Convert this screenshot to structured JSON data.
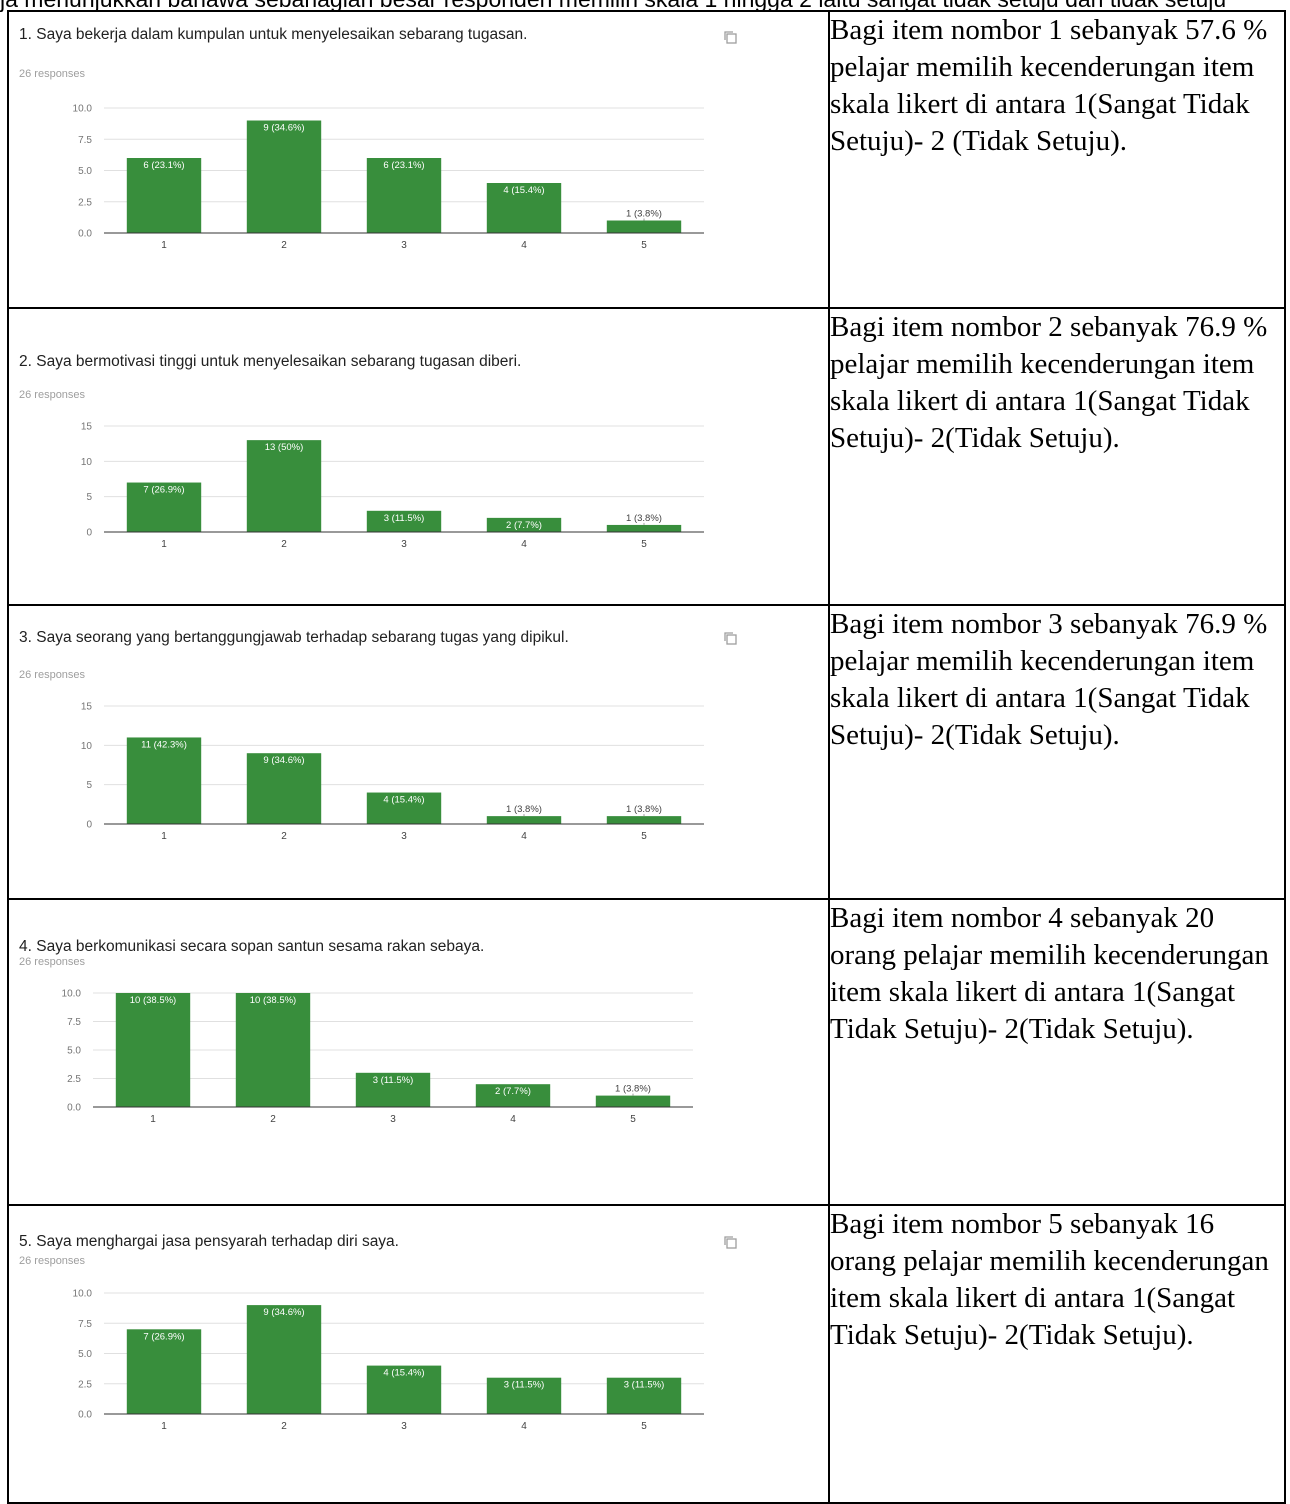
{
  "top_fragment": "ja menunjukkan bahawa sebahagian besar responden memilih skala 1 hingga 2 iaitu sangat tidak setuju dan tidak setuju",
  "colors": {
    "bar": "#388e3c",
    "grid": "#e0e0e0",
    "axis": "#333333",
    "tick": "#757575"
  },
  "items": [
    {
      "question": "1. Saya bekerja dalam kumpulan untuk menyelesaikan sebarang tugasan.",
      "responses": "26 responses",
      "has_copy_icon": true,
      "description": "Bagi item nombor 1 sebanyak 57.6 % pelajar memilih kecenderungan item skala likert di antara 1(Sangat Tidak Setuju)- 2 (Tidak Setuju).",
      "chart_data": {
        "type": "bar",
        "categories": [
          "1",
          "2",
          "3",
          "4",
          "5"
        ],
        "values": [
          6,
          9,
          6,
          4,
          1
        ],
        "data_labels": [
          "6 (23.1%)",
          "9 (34.6%)",
          "6 (23.1%)",
          "4 (15.4%)",
          "1 (3.8%)"
        ],
        "yticks": [
          "0.0",
          "2.5",
          "5.0",
          "7.5",
          "10.0"
        ],
        "ylim": [
          0,
          10
        ],
        "grid": true
      }
    },
    {
      "question": "2. Saya bermotivasi tinggi untuk menyelesaikan sebarang tugasan diberi.",
      "responses": "26 responses",
      "has_copy_icon": false,
      "description": "Bagi item nombor  2 sebanyak 76.9 % pelajar memilih kecenderungan item skala likert di antara 1(Sangat Tidak Setuju)- 2(Tidak Setuju).",
      "chart_data": {
        "type": "bar",
        "categories": [
          "1",
          "2",
          "3",
          "4",
          "5"
        ],
        "values": [
          7,
          13,
          3,
          2,
          1
        ],
        "data_labels": [
          "7 (26.9%)",
          "13 (50%)",
          "3 (11.5%)",
          "2 (7.7%)",
          "1 (3.8%)"
        ],
        "yticks": [
          "0",
          "5",
          "10",
          "15"
        ],
        "ylim": [
          0,
          15
        ],
        "grid": true
      }
    },
    {
      "question": "3. Saya seorang yang bertanggungjawab terhadap sebarang tugas yang dipikul.",
      "responses": "26 responses",
      "has_copy_icon": true,
      "description": "Bagi item nombor 3 sebanyak 76.9 % pelajar memilih kecenderungan item skala likert di antara 1(Sangat Tidak Setuju)- 2(Tidak Setuju).",
      "chart_data": {
        "type": "bar",
        "categories": [
          "1",
          "2",
          "3",
          "4",
          "5"
        ],
        "values": [
          11,
          9,
          4,
          1,
          1
        ],
        "data_labels": [
          "11 (42.3%)",
          "9 (34.6%)",
          "4 (15.4%)",
          "1 (3.8%)",
          "1 (3.8%)"
        ],
        "yticks": [
          "0",
          "5",
          "10",
          "15"
        ],
        "ylim": [
          0,
          15
        ],
        "grid": true
      }
    },
    {
      "question": "4. Saya berkomunikasi secara sopan santun sesama rakan sebaya.",
      "responses": "26 responses",
      "has_copy_icon": false,
      "description": "Bagi item nombor 4 sebanyak 20 orang pelajar memilih kecenderungan item skala likert di antara 1(Sangat Tidak Setuju)- 2(Tidak Setuju).",
      "chart_data": {
        "type": "bar",
        "categories": [
          "1",
          "2",
          "3",
          "4",
          "5"
        ],
        "values": [
          10,
          10,
          3,
          2,
          1
        ],
        "data_labels": [
          "10 (38.5%)",
          "10 (38.5%)",
          "3 (11.5%)",
          "2 (7.7%)",
          "1 (3.8%)"
        ],
        "yticks": [
          "0.0",
          "2.5",
          "5.0",
          "7.5",
          "10.0"
        ],
        "ylim": [
          0,
          10
        ],
        "grid": true
      }
    },
    {
      "question": "5. Saya menghargai jasa pensyarah terhadap diri saya.",
      "responses": "26 responses",
      "has_copy_icon": true,
      "description": "Bagi item nombor 5 sebanyak 16 orang pelajar memilih kecenderungan item skala likert di antara 1(Sangat Tidak Setuju)- 2(Tidak Setuju).",
      "chart_data": {
        "type": "bar",
        "categories": [
          "1",
          "2",
          "3",
          "4",
          "5"
        ],
        "values": [
          7,
          9,
          4,
          3,
          3
        ],
        "data_labels": [
          "7 (26.9%)",
          "9 (34.6%)",
          "4 (15.4%)",
          "3 (11.5%)",
          "3 (11.5%)"
        ],
        "yticks": [
          "0.0",
          "2.5",
          "5.0",
          "7.5",
          "10.0"
        ],
        "ylim": [
          0,
          10
        ],
        "grid": true
      }
    }
  ]
}
